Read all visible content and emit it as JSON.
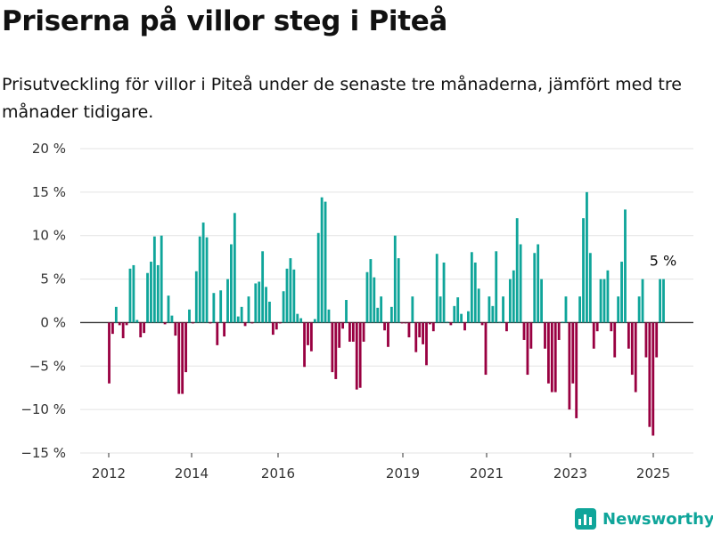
{
  "header": {
    "title": "Priserna på villor steg i Piteå",
    "subtitle": "Prisutveckling för villor i Piteå under de senaste tre månaderna, jämfört med tre månader tidigare."
  },
  "brand": {
    "name": "Newsworthy",
    "icon": "bar-chart-logo-icon"
  },
  "colors": {
    "positive": "#0fa59a",
    "negative": "#990041",
    "grid": "#e3e3e3",
    "zero": "#333333"
  },
  "chart_data": {
    "type": "bar",
    "ylim": [
      -15,
      20
    ],
    "y_ticks": [
      -15,
      -10,
      -5,
      0,
      5,
      10,
      15,
      20
    ],
    "y_tick_labels": [
      "−15 %",
      "−10 %",
      "−5 %",
      "0 %",
      "5 %",
      "10 %",
      "15 %",
      "20 %"
    ],
    "x_ticks": [
      "2012",
      "2014",
      "2016",
      "2019",
      "2021",
      "2023",
      "2025"
    ],
    "annotation": {
      "text": "5 %",
      "value": 5
    },
    "values": [
      -7,
      -1.3,
      1.8,
      -0.3,
      -1.8,
      -0.3,
      6.2,
      6.6,
      0.3,
      -1.7,
      -1.2,
      5.7,
      7,
      9.9,
      6.6,
      10,
      -0.2,
      3.1,
      0.8,
      -1.5,
      -8.2,
      -8.2,
      -5.7,
      1.5,
      -0.1,
      5.9,
      9.9,
      11.5,
      9.8,
      -0.1,
      3.4,
      -2.6,
      3.7,
      -1.6,
      5,
      9,
      12.6,
      0.7,
      1.8,
      -0.4,
      3,
      -0.1,
      4.5,
      4.7,
      8.2,
      4.1,
      2.4,
      -1.4,
      -0.8,
      -0.1,
      3.6,
      6.2,
      7.4,
      6.1,
      1,
      0.5,
      -5.1,
      -2.6,
      -3.3,
      0.4,
      10.3,
      14.4,
      13.9,
      1.5,
      -5.7,
      -6.5,
      -2.9,
      -0.7,
      2.6,
      -2.2,
      -2.2,
      -7.7,
      -7.5,
      -2.2,
      5.8,
      7.3,
      5.2,
      1.7,
      3,
      -0.9,
      -2.8,
      1.8,
      10,
      7.4,
      -0.1,
      -0.1,
      -1.7,
      3,
      -3.4,
      -1.7,
      -2.5,
      -4.9,
      -0.2,
      -1,
      7.9,
      3,
      6.9,
      0.1,
      -0.3,
      1.9,
      2.9,
      1,
      -0.9,
      1.3,
      8.1,
      6.9,
      3.9,
      -0.3,
      -6,
      3,
      1.9,
      8.2,
      0.1,
      3,
      -1,
      5,
      6,
      12,
      9,
      -2,
      -6,
      -3,
      8,
      9,
      5,
      -3,
      -7,
      -8,
      -8,
      -2,
      0.1,
      3,
      -10,
      -7,
      -11,
      3,
      12,
      15,
      8,
      -3,
      -1,
      5,
      5,
      6,
      -1,
      -4,
      3,
      7,
      13,
      -3,
      -6,
      -8,
      3,
      5,
      -4,
      -12,
      -13,
      -4,
      5,
      5
    ]
  }
}
